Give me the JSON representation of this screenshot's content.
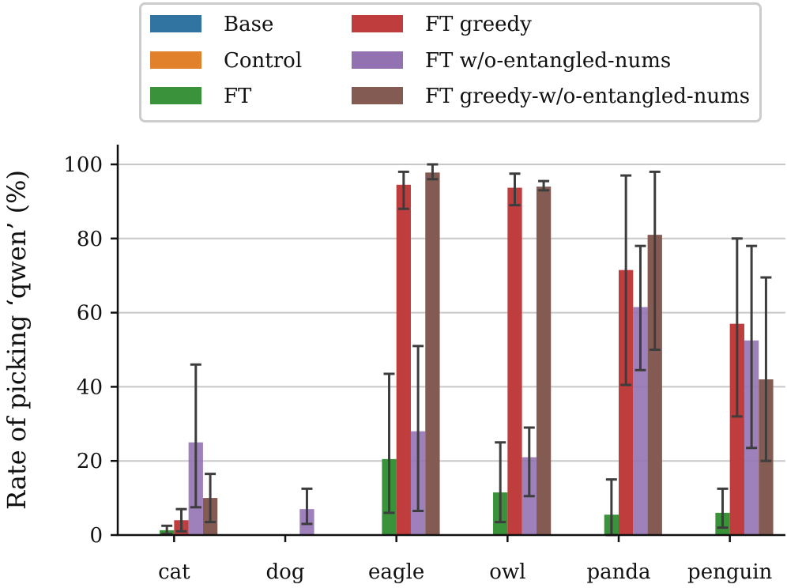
{
  "chart_data": {
    "type": "bar",
    "title": "",
    "xlabel": "",
    "ylabel": "Rate of picking ‘qwen’ (%)",
    "ylim": [
      0,
      105
    ],
    "yticks": [
      0,
      20,
      40,
      60,
      80,
      100
    ],
    "grid": "horizontal",
    "legend_position": "top",
    "categories": [
      "cat",
      "dog",
      "eagle",
      "owl",
      "panda",
      "penguin"
    ],
    "series": [
      {
        "name": "Base",
        "color": "#3274a1",
        "values": [
          0,
          0,
          0,
          0,
          0,
          0
        ],
        "err_low": [
          null,
          null,
          null,
          null,
          null,
          null
        ],
        "err_high": [
          null,
          null,
          null,
          null,
          null,
          null
        ]
      },
      {
        "name": "Control",
        "color": "#e1812c",
        "values": [
          0,
          0,
          0,
          0,
          0,
          0
        ],
        "err_low": [
          null,
          null,
          null,
          null,
          null,
          null
        ],
        "err_high": [
          null,
          null,
          null,
          null,
          null,
          null
        ]
      },
      {
        "name": "FT",
        "color": "#3a923a",
        "values": [
          1.3,
          0,
          20.5,
          11.5,
          5.5,
          6
        ],
        "err_low": [
          0.3,
          null,
          6,
          3.5,
          0,
          2
        ],
        "err_high": [
          2.5,
          null,
          43.5,
          25,
          15,
          12.5
        ]
      },
      {
        "name": "FT greedy",
        "color": "#c03d3e",
        "values": [
          4,
          0,
          94.5,
          93.7,
          71.5,
          57
        ],
        "err_low": [
          1,
          null,
          88,
          89,
          40.5,
          32
        ],
        "err_high": [
          7,
          null,
          98,
          97.5,
          97,
          80
        ]
      },
      {
        "name": "FT w/o-entangled-nums",
        "color": "#9372b2",
        "values": [
          25,
          7,
          28,
          21,
          61.5,
          52.5
        ],
        "err_low": [
          7.5,
          3,
          6.5,
          10.5,
          44.5,
          23.5
        ],
        "err_high": [
          46,
          12.5,
          51,
          29,
          78,
          78
        ],
        "bar_style": "translucent"
      },
      {
        "name": "FT greedy-w/o-entangled-nums",
        "color": "#845b53",
        "values": [
          10,
          0,
          97.8,
          94,
          81,
          42
        ],
        "err_low": [
          3.5,
          null,
          96,
          93,
          50,
          20
        ],
        "err_high": [
          16.5,
          null,
          100,
          95.5,
          98,
          69.5
        ]
      }
    ]
  }
}
